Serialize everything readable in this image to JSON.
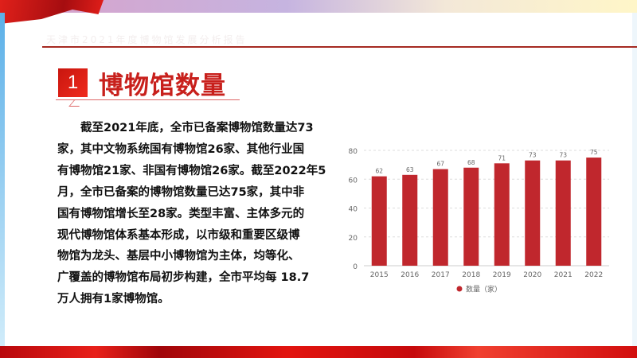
{
  "header": {
    "subtitle": "天津市2021年度博物馆发展分析报告",
    "section_number": "1",
    "section_title": "博物馆数量"
  },
  "body": {
    "lines": [
      "截至2021年底，全市已备案博物馆数量达73",
      "家，其中文物系统国有博物馆26家、其他行业国",
      "有博物馆21家、非国有博物馆26家。截至2022年5",
      "月，全市已备案的博物馆数量已达75家，其中非",
      "国有博物馆增长至28家。类型丰富、主体多元的",
      "现代博物馆体系基本形成，以市级和重要区级博",
      "物馆为龙头、基层中小博物馆为主体，均等化、",
      "广覆盖的博物馆布局初步构建，全市平均每 18.7",
      "万人拥有1家博物馆。"
    ]
  },
  "colors": {
    "accent": "#c8201c",
    "bar": "#c0272d"
  },
  "chart_data": {
    "type": "bar",
    "categories": [
      "2015",
      "2016",
      "2017",
      "2018",
      "2019",
      "2020",
      "2021",
      "2022"
    ],
    "series": [
      {
        "name": "数量（家）",
        "values": [
          62,
          63,
          67,
          68,
          71,
          73,
          73,
          75
        ]
      }
    ],
    "ylim": [
      0,
      80
    ],
    "yticks": [
      "0",
      "20",
      "40",
      "60",
      "80"
    ],
    "grid": true,
    "legend": "bottom",
    "data_labels": true
  }
}
